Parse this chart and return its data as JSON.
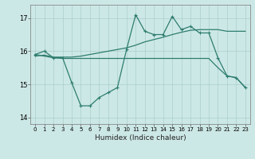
{
  "xlabel": "Humidex (Indice chaleur)",
  "x": [
    0,
    1,
    2,
    3,
    4,
    5,
    6,
    7,
    8,
    9,
    10,
    11,
    12,
    13,
    14,
    15,
    16,
    17,
    18,
    19,
    20,
    21,
    22,
    23
  ],
  "line1": [
    15.9,
    16.0,
    15.8,
    15.8,
    15.05,
    14.35,
    14.35,
    14.6,
    14.75,
    14.9,
    16.05,
    17.1,
    16.6,
    16.5,
    16.5,
    17.05,
    16.65,
    16.75,
    16.55,
    16.55,
    15.8,
    15.25,
    15.2,
    14.9
  ],
  "line2": [
    15.9,
    15.85,
    15.8,
    15.78,
    15.78,
    15.78,
    15.78,
    15.78,
    15.78,
    15.78,
    15.78,
    15.78,
    15.78,
    15.78,
    15.78,
    15.78,
    15.78,
    15.78,
    15.78,
    15.78,
    15.5,
    15.25,
    15.2,
    14.9
  ],
  "line3": [
    15.85,
    15.88,
    15.82,
    15.82,
    15.82,
    15.85,
    15.9,
    15.95,
    16.0,
    16.05,
    16.1,
    16.18,
    16.28,
    16.35,
    16.42,
    16.5,
    16.57,
    16.63,
    16.65,
    16.65,
    16.65,
    16.6,
    16.6,
    16.6
  ],
  "line_color": "#2e7d6e",
  "bg_color": "#cce8e6",
  "grid_color": "#aacfcc",
  "ylim": [
    13.8,
    17.4
  ],
  "yticks": [
    14,
    15,
    16,
    17
  ],
  "xticks": [
    0,
    1,
    2,
    3,
    4,
    5,
    6,
    7,
    8,
    9,
    10,
    11,
    12,
    13,
    14,
    15,
    16,
    17,
    18,
    19,
    20,
    21,
    22,
    23
  ],
  "figwidth": 3.2,
  "figheight": 2.0,
  "dpi": 100
}
